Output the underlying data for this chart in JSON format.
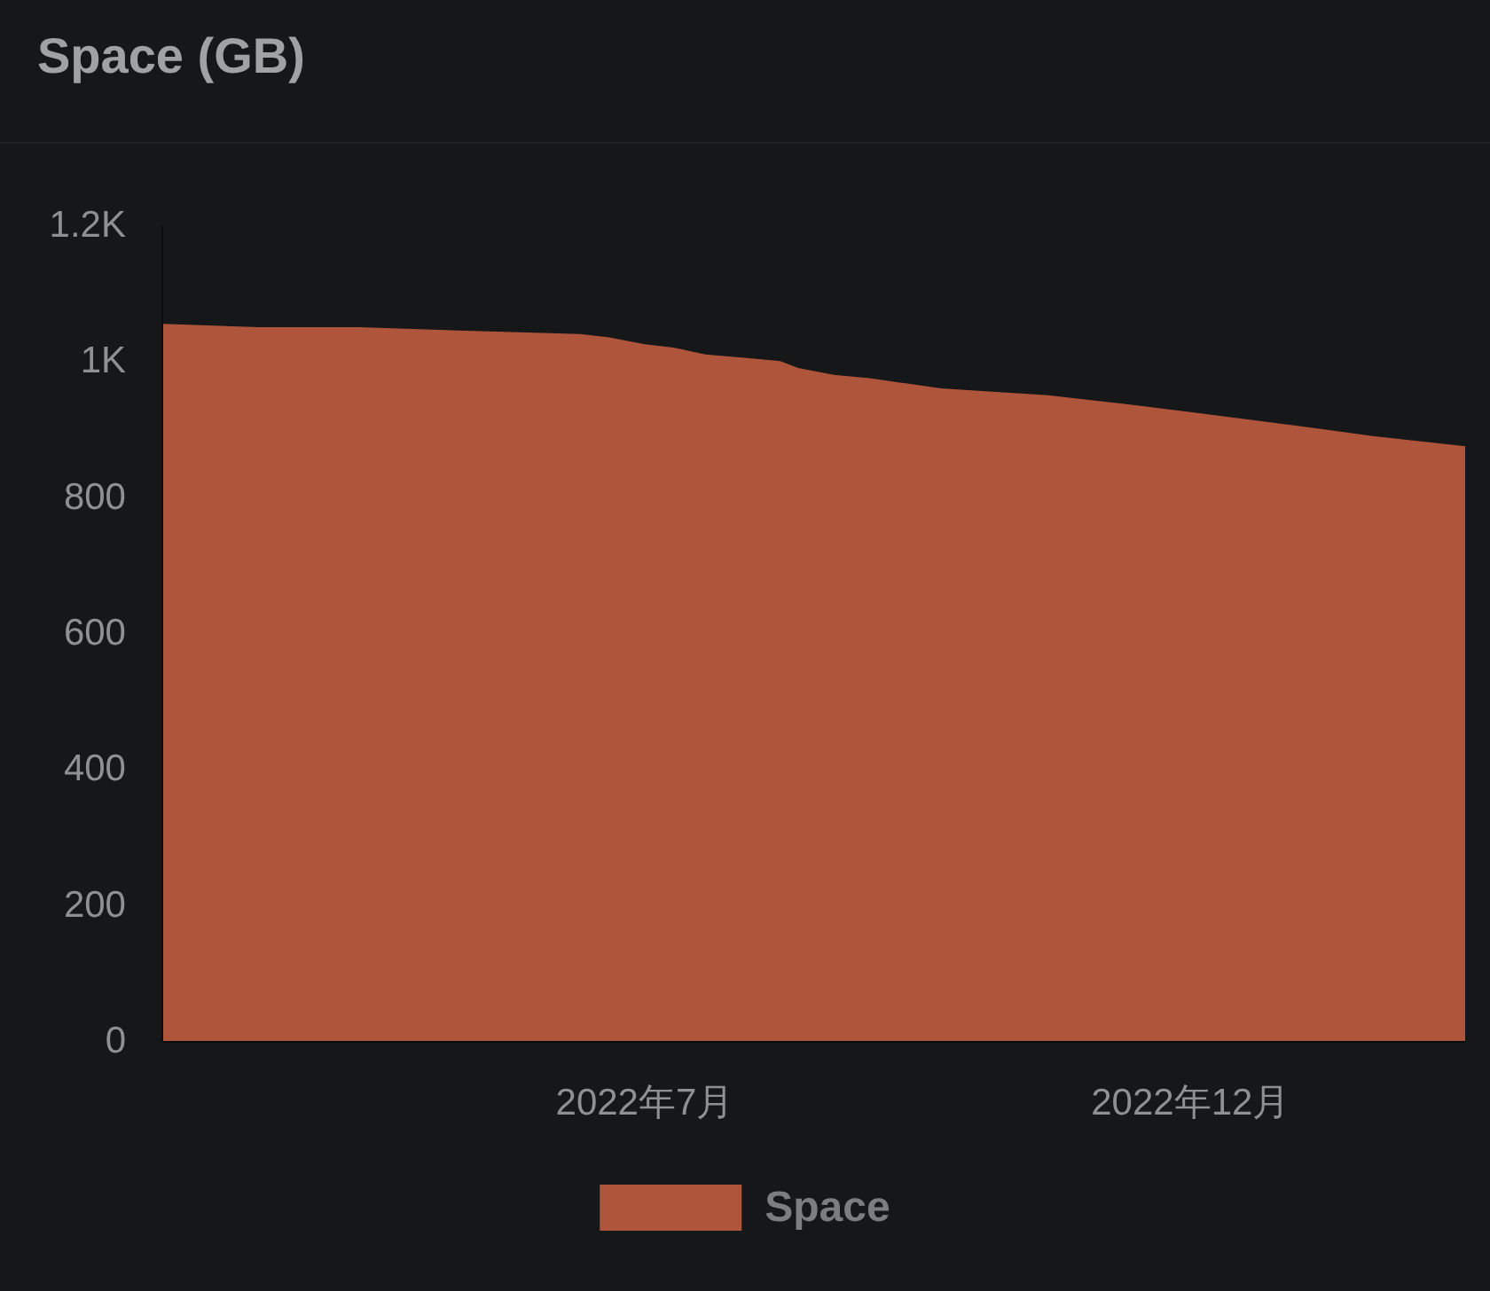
{
  "chart_data": {
    "type": "area",
    "title": "Space (GB)",
    "x": [
      "2022-02-16",
      "2022-03-15",
      "2022-04-12",
      "2022-05-10",
      "2022-06-13",
      "2022-06-21",
      "2022-07-01",
      "2022-07-09",
      "2022-07-18",
      "2022-07-29",
      "2022-08-08",
      "2022-08-13",
      "2022-08-23",
      "2022-09-02",
      "2022-09-22",
      "2022-10-22",
      "2022-11-16",
      "2022-12-01",
      "2022-12-31",
      "2023-01-21",
      "2023-02-16"
    ],
    "series": [
      {
        "name": "Space",
        "color": "#ae553b",
        "values": [
          1055,
          1050,
          1050,
          1045,
          1040,
          1035,
          1025,
          1020,
          1010,
          1005,
          1000,
          990,
          980,
          975,
          960,
          950,
          935,
          925,
          905,
          890,
          875
        ]
      }
    ],
    "xlim": [
      "2022-02-16",
      "2023-02-16"
    ],
    "xticks": [
      {
        "value": "2022-07-01",
        "label": "2022年7月"
      },
      {
        "value": "2022-12-01",
        "label": "2022年12月"
      }
    ],
    "ylim": [
      0,
      1200
    ],
    "yticks": [
      0,
      200,
      400,
      600,
      800,
      {
        "value": 1000,
        "label": "1K"
      },
      {
        "value": 1200,
        "label": "1.2K"
      }
    ],
    "legend": "bottom"
  }
}
